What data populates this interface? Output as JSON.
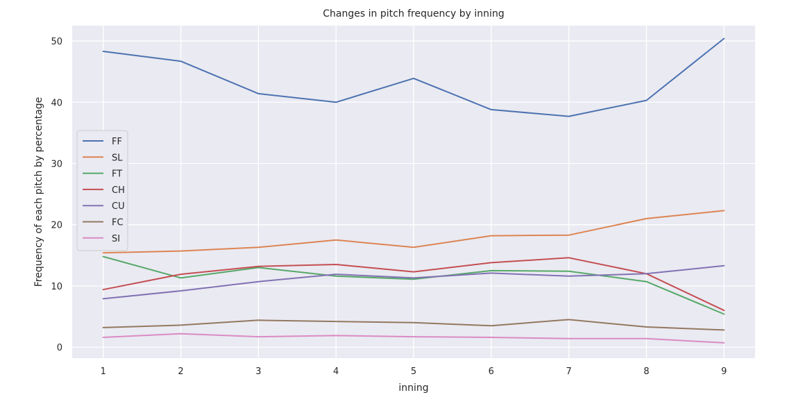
{
  "chart_data": {
    "type": "line",
    "title": "Changes in pitch frequency by inning",
    "xlabel": "inning",
    "ylabel": "Frequency of each pitch by percentage",
    "x": [
      1,
      2,
      3,
      4,
      5,
      6,
      7,
      8,
      9
    ],
    "x_tick_labels": [
      "1",
      "2",
      "3",
      "4",
      "5",
      "6",
      "7",
      "8",
      "9"
    ],
    "xlim": [
      0.6,
      9.4
    ],
    "ylim": [
      -1.8,
      52.5
    ],
    "y_ticks": [
      0,
      10,
      20,
      30,
      40,
      50
    ],
    "y_tick_labels": [
      "0",
      "10",
      "20",
      "30",
      "40",
      "50"
    ],
    "grid": true,
    "legend_position": "center-left",
    "series": [
      {
        "name": "FF",
        "color": "#4c72b0",
        "values": [
          48.3,
          46.7,
          41.4,
          40.0,
          43.9,
          38.8,
          37.7,
          40.3,
          50.4
        ]
      },
      {
        "name": "SL",
        "color": "#dd8452",
        "values": [
          15.4,
          15.7,
          16.3,
          17.5,
          16.3,
          18.2,
          18.3,
          21.0,
          22.3
        ]
      },
      {
        "name": "FT",
        "color": "#55a868",
        "values": [
          14.8,
          11.3,
          13.0,
          11.6,
          11.1,
          12.5,
          12.4,
          10.7,
          5.4
        ]
      },
      {
        "name": "CH",
        "color": "#c44e52",
        "values": [
          9.4,
          11.9,
          13.2,
          13.5,
          12.3,
          13.8,
          14.6,
          12.0,
          6.0
        ]
      },
      {
        "name": "CU",
        "color": "#8172b3",
        "values": [
          7.9,
          9.2,
          10.7,
          11.9,
          11.3,
          12.1,
          11.6,
          12.0,
          13.3
        ]
      },
      {
        "name": "FC",
        "color": "#937860",
        "values": [
          3.2,
          3.6,
          4.4,
          4.2,
          4.0,
          3.5,
          4.5,
          3.3,
          2.8
        ]
      },
      {
        "name": "SI",
        "color": "#da8bc3",
        "values": [
          1.6,
          2.2,
          1.7,
          1.9,
          1.7,
          1.6,
          1.4,
          1.4,
          0.7
        ]
      }
    ],
    "colors": {
      "plot_background": "#eaeaf2",
      "grid": "#ffffff",
      "legend_background": "#eaeaf2",
      "legend_border": "#cccccc"
    }
  }
}
